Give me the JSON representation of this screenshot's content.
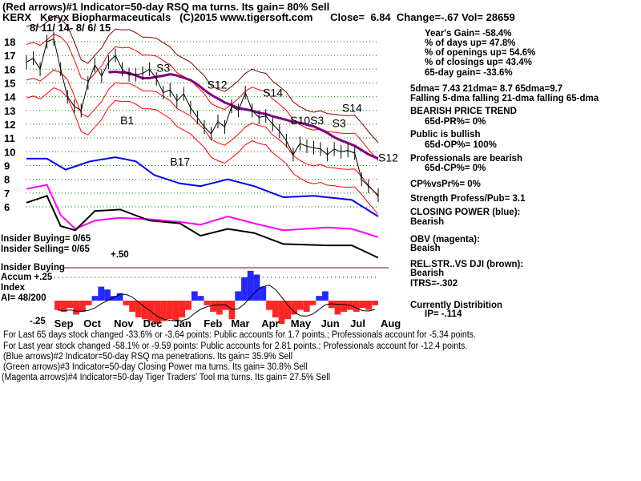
{
  "header": {
    "line1": "(Red arrows)#1 Indicator=50-day RSQ ma turns. Its gain= 80% Sell",
    "line2": "KERX   Keryx Biopharmaceuticals   (C)2015 www.tigersoft.com      Close=  6.84  Change=-.67 Vol= 28659",
    "date_range": "8/ 11/ 14- 8/ 6/ 15"
  },
  "stats": {
    "years_gain": "Year's Gain= -58.4%",
    "days_up": "% of days up= 47.8%",
    "openings_up": "% of openings up= 54.6%",
    "closings_up": "% of closings up= 43.4%",
    "gain_65": "65-day gain= -33.6%",
    "dma": "5dma= 7.43 21dma= 8.7 65dma=9.7",
    "falling": "Falling 5-dma  falling 21-dma  falling 65-dma",
    "trend": "BEARISH PRICE TREND",
    "pr": "65d-PR%= 0%",
    "public": "Public is bullish",
    "op": "65d-OP%= 100%",
    "pros": "Professionals are bearish",
    "cp": "65d-CP%= 0%",
    "cpvspr": "CP%vsPr%=  0%",
    "strength": "Strength Profess/Pub= 3.1",
    "closing_power": "CLOSING POWER (blue):",
    "closing_power_val": "Bearish",
    "obv": "OBV (magenta):",
    "obv_val": "Beaish",
    "relstr": "REL.STR..VS DJI (brown):",
    "relstr_val": "Bearish",
    "itrs": "ITRS=-.302",
    "dist": "Currently Distribition",
    "ip": "IP= -.114"
  },
  "left_labels": {
    "insider_buying": "Insider Buying= 0/65",
    "insider_selling": "Insider Selling= 0/65",
    "plus50": "+.50",
    "insider_buying2": "Insider Buying",
    "accum": "Accum +.25",
    "index": "Index",
    "ai": "AI= 48/200",
    "minus25": "-.25"
  },
  "footer": [
    "For Last 65 days stock changed -33.6% or -3.64 points:  Public accounts for  1.7 points.;  Professionals account for -5.34 points.",
    "For Last year stock changed -58.1% or -9.59 points:  Public accounts for  2.81 points.;  Professionals account for -12.4 points.",
    "(Blue arrows)#2 Indicator=50-day RSQ ma penetrations. Its gain= 35.9% Sell",
    "(Green arrows)#3 Indicator=50-day Closing Power ma turns. Its gain= 30.8% Sell",
    "(Magenta arrows)#4 Indicator=50-day Tiger Traders' Tool ma turns. Its gain= 27.5% Sell"
  ],
  "colors": {
    "price": "#000000",
    "band": "#ff0000",
    "outer_band": "#800000",
    "ma65": "#800080",
    "closing_power": "#0000ff",
    "obv": "#ff00ff",
    "relstr": "#000000",
    "accum_pos": "#0000ff",
    "accum_neg": "#ff0000",
    "grid": "#008000"
  },
  "chart_data": {
    "type": "line",
    "title": "",
    "x_range": [
      "2014-08-11",
      "2015-08-06"
    ],
    "month_labels": [
      "Sep",
      "Oct",
      "Nov",
      "Dec",
      "Jan",
      "Feb",
      "Mar",
      "Apr",
      "May",
      "Jun",
      "Jul",
      "Aug"
    ],
    "price_axis": {
      "ticks": [
        18,
        17,
        16,
        15,
        14,
        13,
        12,
        11,
        10,
        9,
        8,
        7,
        6
      ],
      "range": [
        6,
        18
      ],
      "grid": true
    },
    "price": [
      [
        "2014-08-11",
        16.5
      ],
      [
        "2014-08-18",
        16.8
      ],
      [
        "2014-08-25",
        16.0
      ],
      [
        "2014-09-01",
        18.0
      ],
      [
        "2014-09-08",
        18.2
      ],
      [
        "2014-09-15",
        16.0
      ],
      [
        "2014-09-22",
        14.0
      ],
      [
        "2014-09-29",
        13.3
      ],
      [
        "2014-10-06",
        13.0
      ],
      [
        "2014-10-13",
        15.0
      ],
      [
        "2014-10-20",
        16.3
      ],
      [
        "2014-10-27",
        15.5
      ],
      [
        "2014-11-03",
        16.5
      ],
      [
        "2014-11-10",
        17.0
      ],
      [
        "2014-11-17",
        16.0
      ],
      [
        "2014-11-24",
        15.6
      ],
      [
        "2014-12-01",
        15.6
      ],
      [
        "2014-12-08",
        15.7
      ],
      [
        "2014-12-15",
        16.0
      ],
      [
        "2014-12-22",
        15.3
      ],
      [
        "2014-12-29",
        14.3
      ],
      [
        "2015-01-05",
        14.5
      ],
      [
        "2015-01-12",
        13.7
      ],
      [
        "2015-01-19",
        14.2
      ],
      [
        "2015-01-26",
        13.2
      ],
      [
        "2015-02-02",
        12.5
      ],
      [
        "2015-02-09",
        11.8
      ],
      [
        "2015-02-16",
        11.3
      ],
      [
        "2015-02-23",
        12.2
      ],
      [
        "2015-03-02",
        11.8
      ],
      [
        "2015-03-09",
        13.3
      ],
      [
        "2015-03-16",
        13.0
      ],
      [
        "2015-03-23",
        14.3
      ],
      [
        "2015-03-30",
        13.0
      ],
      [
        "2015-04-06",
        12.5
      ],
      [
        "2015-04-13",
        12.6
      ],
      [
        "2015-04-20",
        12.0
      ],
      [
        "2015-04-27",
        11.5
      ],
      [
        "2015-05-04",
        10.8
      ],
      [
        "2015-05-11",
        9.8
      ],
      [
        "2015-05-18",
        10.6
      ],
      [
        "2015-05-25",
        10.4
      ],
      [
        "2015-06-01",
        10.3
      ],
      [
        "2015-06-08",
        10.2
      ],
      [
        "2015-06-15",
        9.8
      ],
      [
        "2015-06-22",
        10.2
      ],
      [
        "2015-06-29",
        10.0
      ],
      [
        "2015-07-06",
        10.1
      ],
      [
        "2015-07-13",
        9.9
      ],
      [
        "2015-07-20",
        8.0
      ],
      [
        "2015-07-27",
        7.5
      ],
      [
        "2015-08-06",
        6.84
      ]
    ],
    "closing_power": [
      [
        "2014-08-11",
        9.5
      ],
      [
        "2014-09-01",
        9.5
      ],
      [
        "2014-09-20",
        8.7
      ],
      [
        "2014-10-15",
        9.3
      ],
      [
        "2014-11-10",
        9.6
      ],
      [
        "2014-12-01",
        9.3
      ],
      [
        "2014-12-20",
        8.3
      ],
      [
        "2015-01-15",
        7.7
      ],
      [
        "2015-02-05",
        7.5
      ],
      [
        "2015-03-05",
        8.0
      ],
      [
        "2015-04-01",
        7.5
      ],
      [
        "2015-05-01",
        6.7
      ],
      [
        "2015-06-01",
        6.8
      ],
      [
        "2015-07-10",
        6.5
      ],
      [
        "2015-08-06",
        5.3
      ]
    ],
    "obv": [
      [
        "2014-08-11",
        7.3
      ],
      [
        "2014-09-01",
        7.6
      ],
      [
        "2014-09-15",
        5.4
      ],
      [
        "2014-09-30",
        4.4
      ],
      [
        "2014-10-20",
        5.0
      ],
      [
        "2014-11-15",
        5.2
      ],
      [
        "2014-12-15",
        5.1
      ],
      [
        "2015-01-15",
        4.9
      ],
      [
        "2015-02-05",
        4.7
      ],
      [
        "2015-03-05",
        5.3
      ],
      [
        "2015-04-01",
        4.8
      ],
      [
        "2015-05-01",
        4.3
      ],
      [
        "2015-06-15",
        4.5
      ],
      [
        "2015-07-10",
        4.4
      ],
      [
        "2015-08-06",
        3.8
      ]
    ],
    "relstr": [
      [
        "2014-08-11",
        6.3
      ],
      [
        "2014-09-01",
        6.8
      ],
      [
        "2014-09-15",
        4.6
      ],
      [
        "2014-09-30",
        4.3
      ],
      [
        "2014-10-20",
        5.7
      ],
      [
        "2014-11-15",
        5.8
      ],
      [
        "2014-12-15",
        5.0
      ],
      [
        "2015-01-15",
        4.8
      ],
      [
        "2015-02-05",
        3.9
      ],
      [
        "2015-03-05",
        4.4
      ],
      [
        "2015-04-01",
        4.1
      ],
      [
        "2015-05-01",
        3.3
      ],
      [
        "2015-06-15",
        3.2
      ],
      [
        "2015-07-10",
        3.2
      ],
      [
        "2015-08-06",
        2.3
      ]
    ],
    "accum_axis": {
      "ticks": [
        "+.50",
        "+.25",
        "-.25"
      ],
      "range": [
        -0.25,
        0.5
      ]
    },
    "accum_index": [
      -0.1,
      -0.12,
      -0.08,
      -0.15,
      -0.12,
      -0.05,
      0.05,
      0.15,
      0.12,
      0.05,
      0.08,
      -0.05,
      -0.12,
      -0.18,
      -0.2,
      -0.22,
      -0.25,
      -0.22,
      -0.2,
      -0.22,
      -0.18,
      -0.1,
      0.1,
      0.05,
      -0.05,
      -0.12,
      -0.15,
      -0.1,
      -0.2,
      0.1,
      0.25,
      0.32,
      0.28,
      0.15,
      -0.1,
      -0.18,
      -0.25,
      -0.2,
      -0.15,
      -0.1,
      -0.12,
      -0.05,
      0.05,
      0.1,
      -0.08,
      -0.15,
      -0.12,
      -0.1,
      -0.12,
      -0.08,
      -0.1,
      -0.05
    ],
    "signals": [
      {
        "label": "S3",
        "date": "2014-12-22",
        "price": 15.8
      },
      {
        "label": "S12",
        "date": "2015-02-12",
        "price": 14.6
      },
      {
        "label": "B1",
        "date": "2014-11-15",
        "price": 12.0
      },
      {
        "label": "B17",
        "date": "2015-01-05",
        "price": 9.0
      },
      {
        "label": "S14",
        "date": "2015-04-10",
        "price": 14.0
      },
      {
        "label": "S10S3",
        "date": "2015-05-08",
        "price": 12.0
      },
      {
        "label": "S3",
        "date": "2015-06-20",
        "price": 11.8
      },
      {
        "label": "S14",
        "date": "2015-06-30",
        "price": 12.2
      },
      {
        "label": "S12",
        "date": "2015-08-06",
        "price": 9.3
      }
    ]
  }
}
